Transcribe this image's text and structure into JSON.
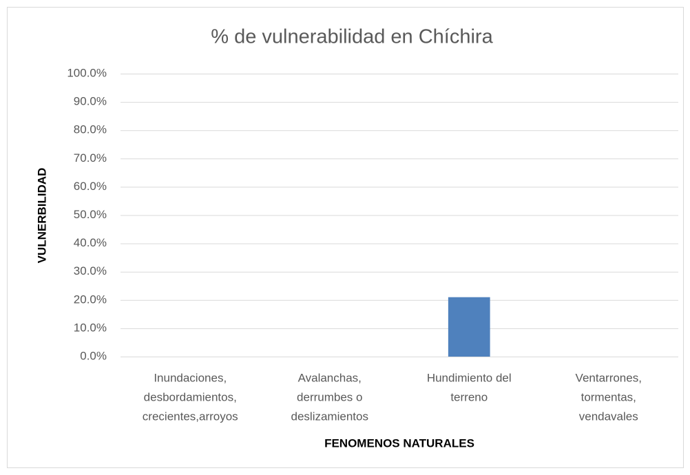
{
  "chart_data": {
    "type": "bar",
    "title": "% de vulnerabilidad  en Chíchira",
    "x_label": "FENOMENOS NATURALES",
    "y_label": "VULNERBILIDAD",
    "categories": [
      [
        "Inundaciones,",
        "desbordamientos,",
        "crecientes,arroyos"
      ],
      [
        "Avalanchas,",
        "derrumbes o",
        "deslizamientos"
      ],
      [
        "Hundimiento del",
        "terreno"
      ],
      [
        "Ventarrones,",
        "tormentas,",
        "vendavales"
      ]
    ],
    "values": [
      0,
      0,
      21,
      0
    ],
    "color": "#4f81bd",
    "ylim": [
      0,
      100
    ],
    "yticks": [
      {
        "value": 0,
        "label": "0.0%"
      },
      {
        "value": 10,
        "label": "10.0%"
      },
      {
        "value": 20,
        "label": "20.0%"
      },
      {
        "value": 30,
        "label": "30.0%"
      },
      {
        "value": 40,
        "label": "40.0%"
      },
      {
        "value": 50,
        "label": "50.0%"
      },
      {
        "value": 60,
        "label": "60.0%"
      },
      {
        "value": 70,
        "label": "70.0%"
      },
      {
        "value": 80,
        "label": "80.0%"
      },
      {
        "value": 90,
        "label": "90.0%"
      },
      {
        "value": 100,
        "label": "100.0%"
      }
    ],
    "grid": true
  }
}
